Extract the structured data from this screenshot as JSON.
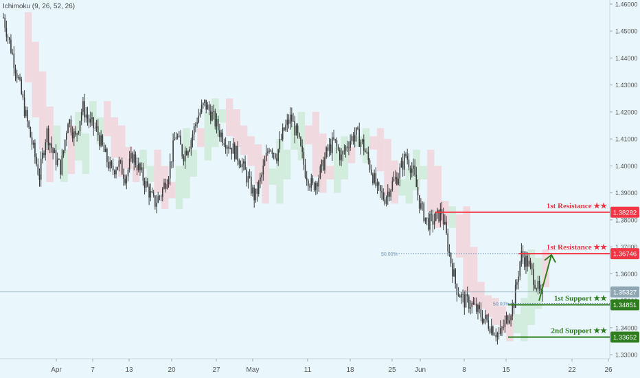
{
  "indicator": "Ichimoku (9, 26, 52, 26)",
  "chart_data": {
    "type": "candlestick",
    "symbol": "",
    "ylim": [
      1.3285,
      1.4615
    ],
    "y_ticks": [
      "1.46000",
      "1.45000",
      "1.44000",
      "1.43000",
      "1.42000",
      "1.41000",
      "1.40000",
      "1.39000",
      "1.38000",
      "1.37000",
      "1.36000",
      "1.35000",
      "1.34000",
      "1.33000"
    ],
    "x_ticks": [
      "Apr",
      "7",
      "13",
      "20",
      "27",
      "May",
      "11",
      "18",
      "25",
      "Jun",
      "8",
      "15",
      "22",
      "26"
    ],
    "series": [
      {
        "name": "",
        "description": "approximate daily/intraday closes read from chart (index order)",
        "values": [
          1.455,
          1.444,
          1.433,
          1.42,
          1.408,
          1.396,
          1.413,
          1.404,
          1.399,
          1.418,
          1.41,
          1.422,
          1.416,
          1.413,
          1.405,
          1.398,
          1.401,
          1.396,
          1.404,
          1.398,
          1.392,
          1.386,
          1.39,
          1.398,
          1.412,
          1.404,
          1.409,
          1.418,
          1.423,
          1.419,
          1.413,
          1.409,
          1.406,
          1.402,
          1.395,
          1.388,
          1.397,
          1.408,
          1.404,
          1.413,
          1.418,
          1.41,
          1.398,
          1.392,
          1.397,
          1.405,
          1.409,
          1.403,
          1.409,
          1.412,
          1.408,
          1.4,
          1.391,
          1.388,
          1.393,
          1.397,
          1.404,
          1.398,
          1.385,
          1.379,
          1.38,
          1.383,
          1.368,
          1.355,
          1.35,
          1.349,
          1.346,
          1.343,
          1.34,
          1.337,
          1.343,
          1.349,
          1.367,
          1.364,
          1.357,
          1.35
        ]
      }
    ],
    "levels": [
      {
        "label": "1st Resistance ★★",
        "value": "1.38282",
        "kind": "resistance"
      },
      {
        "label": "1st Resistance ★★",
        "value": "1.36746",
        "kind": "resistance"
      },
      {
        "label": "1st Support ★★",
        "value": "1.34851",
        "kind": "support"
      },
      {
        "label": "2nd Support ★★",
        "value": "1.33652",
        "kind": "support"
      }
    ],
    "current_price": "1.35327",
    "fib_labels": [
      {
        "label": "50.00%",
        "value": 1.3675
      },
      {
        "label": "50.00%",
        "value": 1.349
      }
    ],
    "colors": {
      "resistance": "#f23645",
      "support": "#2e7d1e",
      "candles": "#3a3a3a",
      "cloud_bear": "#f6c3c8",
      "cloud_bull": "#bfe3c2",
      "arrow": "#2e7d1e",
      "current_price": "#8fa7b3",
      "fib": "#6b8fb3"
    }
  }
}
